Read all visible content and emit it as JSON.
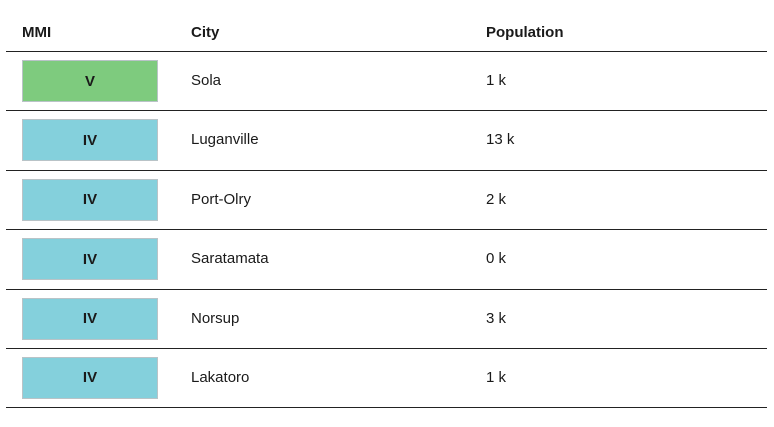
{
  "table": {
    "headers": {
      "mmi": "MMI",
      "city": "City",
      "population": "Population"
    },
    "rows": [
      {
        "mmi": "V",
        "mmi_color": "#7ecb7e",
        "city": "Sola",
        "population": "1 k"
      },
      {
        "mmi": "IV",
        "mmi_color": "#84d0dc",
        "city": "Luganville",
        "population": "13 k"
      },
      {
        "mmi": "IV",
        "mmi_color": "#84d0dc",
        "city": "Port-Olry",
        "population": "2 k"
      },
      {
        "mmi": "IV",
        "mmi_color": "#84d0dc",
        "city": "Saratamata",
        "population": "0 k"
      },
      {
        "mmi": "IV",
        "mmi_color": "#84d0dc",
        "city": "Norsup",
        "population": "3 k"
      },
      {
        "mmi": "IV",
        "mmi_color": "#84d0dc",
        "city": "Lakatoro",
        "population": "1 k"
      }
    ]
  }
}
